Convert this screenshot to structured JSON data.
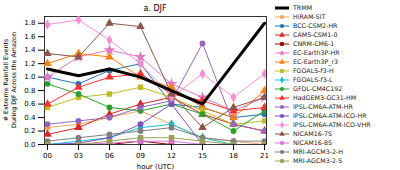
{
  "chart_data": {
    "type": "line",
    "title": "a. DJF",
    "x_label": "hour (UTC)",
    "y_label": "# Extreme Rainfall Events During DJF Across the Amazon",
    "x": [
      "00",
      "03",
      "06",
      "09",
      "12",
      "15",
      "18",
      "21"
    ],
    "ylim": [
      0,
      1.9
    ],
    "yticks": [
      {
        "value": 0,
        "label": "0.0"
      },
      {
        "value": 0.2,
        "label": "0.2"
      },
      {
        "value": 0.4,
        "label": "0.4"
      },
      {
        "value": 0.6,
        "label": "0.6"
      },
      {
        "value": 0.8,
        "label": "0.8"
      },
      {
        "value": 1.0,
        "label": "1.0"
      },
      {
        "value": 1.2,
        "label": "1.2"
      },
      {
        "value": 1.4,
        "label": "1.4"
      },
      {
        "value": 1.6,
        "label": "1.6"
      },
      {
        "value": 1.8,
        "label": "1.8"
      }
    ],
    "legend": "right",
    "series": [
      {
        "name": "TRMM",
        "color": "#000000",
        "marker": "none",
        "line_style": "thick",
        "values": [
          1.12,
          1.02,
          1.12,
          1.0,
          0.8,
          0.6,
          1.2,
          1.8
        ]
      },
      {
        "name": "HiRAM-SIT",
        "color": "#f4a460",
        "marker": "circle",
        "line_style": "solid",
        "values": [
          0.25,
          0.3,
          0.4,
          0.5,
          0.3,
          0.1,
          0.05,
          0.0
        ]
      },
      {
        "name": "BCC-CSM2-HR",
        "color": "#1f77b4",
        "marker": "circle",
        "line_style": "solid",
        "values": [
          1.0,
          0.9,
          1.1,
          1.2,
          0.6,
          0.55,
          0.4,
          0.45
        ]
      },
      {
        "name": "CAMS-CSM1-0",
        "color": "#d62728",
        "marker": "triangle",
        "line_style": "solid",
        "values": [
          0.15,
          0.25,
          0.45,
          0.6,
          0.7,
          0.45,
          0.3,
          0.2
        ]
      },
      {
        "name": "CNRM-CM6-1",
        "color": "#8b0000",
        "marker": "square",
        "line_style": "solid",
        "values": [
          0.0,
          0.0,
          0.0,
          0.05,
          0.0,
          0.0,
          0.0,
          0.0
        ]
      },
      {
        "name": "EC-Earth3P-HR",
        "color": "#e377c2",
        "marker": "star",
        "line_style": "solid",
        "values": [
          1.0,
          1.3,
          1.4,
          1.3,
          0.9,
          0.7,
          0.5,
          0.7
        ]
      },
      {
        "name": "EC-Earth3P_r3",
        "color": "#ff7f0e",
        "marker": "triangle",
        "line_style": "solid",
        "values": [
          1.2,
          1.35,
          1.3,
          1.0,
          0.85,
          0.55,
          0.4,
          0.8
        ]
      },
      {
        "name": "FGOALS-f3-H",
        "color": "#bcbd22",
        "marker": "square",
        "line_style": "solid",
        "values": [
          0.55,
          0.7,
          0.75,
          0.85,
          0.7,
          0.5,
          0.3,
          0.35
        ]
      },
      {
        "name": "FGOALS-f3-L",
        "color": "#17becf",
        "marker": "diamond",
        "line_style": "solid",
        "values": [
          0.0,
          0.05,
          0.1,
          0.25,
          0.3,
          0.1,
          0.0,
          0.0
        ]
      },
      {
        "name": "GFDL-CM4C192",
        "color": "#2ca02c",
        "marker": "circle",
        "line_style": "solid",
        "values": [
          0.9,
          0.75,
          0.55,
          0.5,
          0.6,
          0.45,
          0.2,
          0.5
        ]
      },
      {
        "name": "HadGEM3-GC31-HM",
        "color": "#ff3030",
        "marker": "triangle",
        "line_style": "solid",
        "values": [
          0.6,
          0.85,
          1.0,
          1.05,
          0.75,
          0.65,
          0.5,
          0.55
        ]
      },
      {
        "name": "IPSL-CM6A-ATM-HR",
        "color": "#9467bd",
        "marker": "circle",
        "line_style": "solid",
        "values": [
          0.3,
          0.35,
          0.4,
          0.55,
          0.65,
          1.5,
          0.3,
          0.2
        ]
      },
      {
        "name": "IPSL-CM6A-ATM-ICO-HR",
        "color": "#7b4fbf",
        "marker": "circle",
        "line_style": "solid",
        "values": [
          0.0,
          0.02,
          0.1,
          0.3,
          0.6,
          0.0,
          0.0,
          0.0
        ]
      },
      {
        "name": "IPSL-CM6A-ATM-ICO-VHR",
        "color": "#f78fd1",
        "marker": "diamond",
        "line_style": "solid",
        "values": [
          1.78,
          1.85,
          1.55,
          1.2,
          0.7,
          1.05,
          0.7,
          1.05
        ]
      },
      {
        "name": "NICAM16-7S",
        "color": "#8c564b",
        "marker": "triangle",
        "line_style": "solid",
        "values": [
          1.35,
          1.3,
          1.8,
          1.75,
          0.75,
          0.25,
          0.55,
          0.7
        ]
      },
      {
        "name": "NICAM16-8S",
        "color": "#da70d6",
        "marker": "circle",
        "line_style": "solid",
        "values": [
          0.0,
          0.0,
          0.02,
          0.05,
          0.05,
          0.0,
          0.0,
          0.0
        ]
      },
      {
        "name": "MRI-AGCM3-2-H",
        "color": "#7f7f7f",
        "marker": "circle",
        "line_style": "solid",
        "values": [
          0.05,
          0.1,
          0.15,
          0.2,
          0.25,
          0.1,
          0.05,
          0.05
        ]
      },
      {
        "name": "MRI-AGCM3-2-S",
        "color": "#9aa05a",
        "marker": "square",
        "line_style": "solid",
        "values": [
          0.0,
          0.0,
          0.05,
          0.1,
          0.1,
          0.05,
          0.0,
          0.0
        ]
      }
    ]
  }
}
